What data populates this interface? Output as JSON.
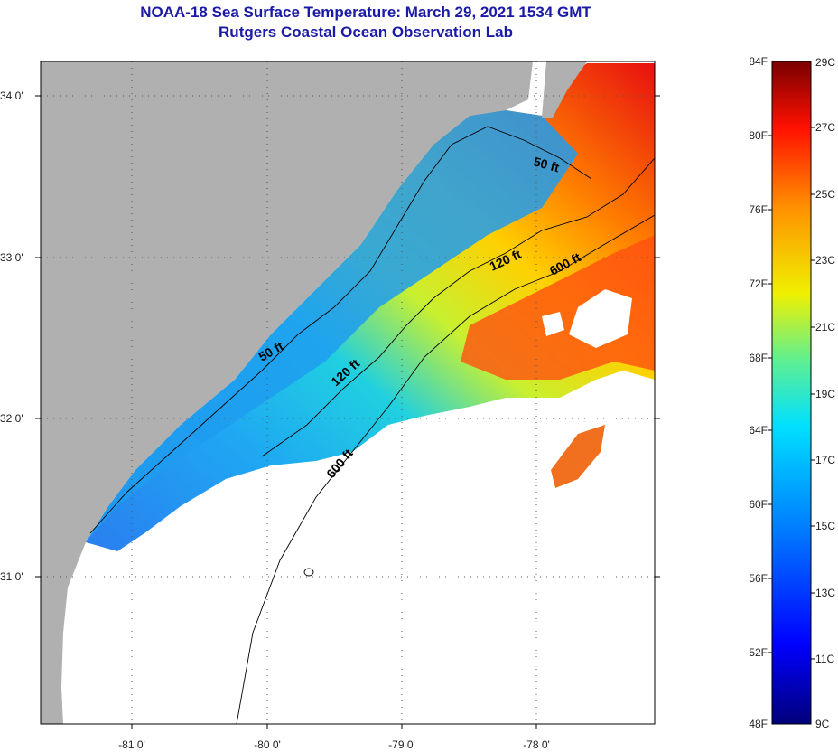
{
  "header": {
    "title": "NOAA-18 Sea Surface Temperature:  March 29, 2021 1534 GMT",
    "subtitle": "Rutgers Coastal Ocean Observation Lab"
  },
  "map": {
    "lon_ticks": [
      "-81 0'",
      "-80 0'",
      "-79 0'",
      "-78 0'"
    ],
    "lat_ticks": [
      "34 0'",
      "33 0'",
      "32 0'",
      "31 0'"
    ],
    "contour_labels": [
      "50 ft",
      "50 ft",
      "120 ft",
      "120 ft",
      "600 ft",
      "600 ft"
    ]
  },
  "colorbar": {
    "f_labels": [
      "84F",
      "80F",
      "76F",
      "72F",
      "68F",
      "64F",
      "60F",
      "56F",
      "52F",
      "48F"
    ],
    "c_labels": [
      "29C",
      "27C",
      "25C",
      "23C",
      "21C",
      "19C",
      "17C",
      "15C",
      "13C",
      "11C",
      "9C"
    ]
  },
  "colors": {
    "title": "#1a1aa6",
    "land": "#b0b0b0",
    "cloud": "#ffffff"
  }
}
